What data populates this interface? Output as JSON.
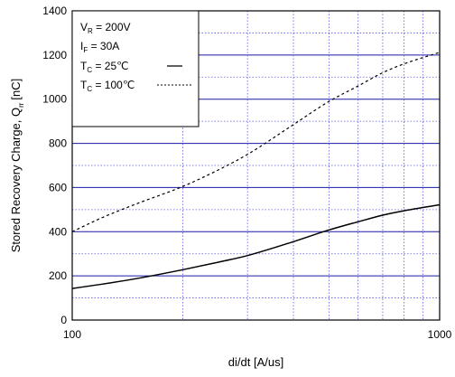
{
  "chart_data": {
    "type": "line",
    "x_scale": "log",
    "xlim": [
      100,
      1000
    ],
    "ylim": [
      0,
      1400
    ],
    "xlabel": "di/dt [A/us]",
    "ylabel_main": "Stored Recovery Charge, Q",
    "ylabel_sub": "rr",
    "ylabel_unit": "[nC]",
    "x_tick_labels": [
      "100",
      "1000"
    ],
    "y_ticks": [
      0,
      200,
      400,
      600,
      800,
      1000,
      1200,
      1400
    ],
    "grid": true,
    "legend": {
      "placement": "top-left",
      "lines": [
        {
          "main": "V",
          "sub": "R",
          "rest": " = 200V"
        },
        {
          "main": "I",
          "sub": "F",
          "rest": " = 30A"
        },
        {
          "main": "T",
          "sub": "C",
          "rest": " =   25℃"
        },
        {
          "main": "T",
          "sub": "C",
          "rest": " = 100℃"
        }
      ]
    },
    "series": [
      {
        "style": "solid",
        "x": [
          100,
          120,
          150,
          200,
          250,
          300,
          400,
          500,
          600,
          700,
          800,
          1000
        ],
        "y": [
          143,
          162,
          188,
          228,
          262,
          292,
          355,
          408,
          445,
          475,
          495,
          522
        ]
      },
      {
        "style": "dashed",
        "x": [
          100,
          120,
          150,
          200,
          250,
          300,
          400,
          500,
          600,
          700,
          800,
          1000
        ],
        "y": [
          400,
          462,
          527,
          605,
          680,
          750,
          885,
          990,
          1060,
          1120,
          1160,
          1212
        ]
      }
    ],
    "colors": {
      "major_grid": "#1a1aa8",
      "minor_grid": "#5a5ae0",
      "line": "#000000"
    }
  }
}
